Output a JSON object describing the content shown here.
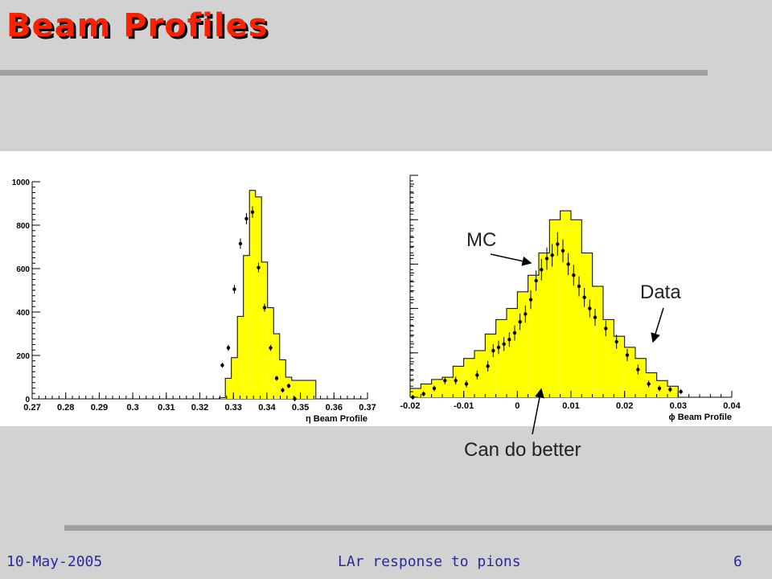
{
  "slide": {
    "title": "Beam Profiles",
    "footer_date": "10-May-2005",
    "footer_center": "LAr response to pions",
    "page_number": "6"
  },
  "annotations": {
    "mc": "MC",
    "data": "Data",
    "can_do_better": "Can do better"
  },
  "colors": {
    "title": "#ff2000",
    "background": "#d2d2d2",
    "histogram_fill": "#ffff00",
    "footer_text": "#2a2aa0"
  },
  "chart_data": [
    {
      "type": "bar",
      "xlabel": "η Beam Profile",
      "xlim": [
        0.27,
        0.37
      ],
      "ylim": [
        0,
        1000
      ],
      "x_ticks": [
        "0.27",
        "0.28",
        "0.29",
        "0.3",
        "0.31",
        "0.32",
        "0.33",
        "0.34",
        "0.35",
        "0.36",
        "0.37"
      ],
      "y_ticks": [
        "0",
        "200",
        "400",
        "600",
        "800",
        "1000"
      ],
      "series": [
        {
          "name": "MC",
          "style": "histogram",
          "bin_edges": [
            0.3258,
            0.3276,
            0.3294,
            0.3312,
            0.333,
            0.3348,
            0.3366,
            0.3384,
            0.3402,
            0.342,
            0.3438,
            0.3456,
            0.3474,
            0.3492,
            0.351,
            0.3546
          ],
          "values": [
            5,
            95,
            190,
            380,
            660,
            960,
            930,
            630,
            420,
            300,
            180,
            100,
            85,
            85,
            85
          ]
        },
        {
          "name": "Data",
          "style": "points",
          "x": [
            0.3267,
            0.3285,
            0.3303,
            0.3321,
            0.3339,
            0.3357,
            0.3375,
            0.3393,
            0.3411,
            0.3429,
            0.3447,
            0.3465,
            0.3483
          ],
          "y": [
            155,
            235,
            505,
            715,
            830,
            860,
            605,
            420,
            235,
            95,
            40,
            60,
            0
          ]
        }
      ]
    },
    {
      "type": "bar",
      "xlabel": "ϕ Beam Profile",
      "xlim": [
        -0.02,
        0.04
      ],
      "x_ticks": [
        "-0.02",
        "-0.01",
        "0",
        "0.01",
        "0.02",
        "0.03",
        "0.04"
      ],
      "series": [
        {
          "name": "MC",
          "style": "histogram",
          "bin_edges": [
            -0.02,
            -0.018,
            -0.016,
            -0.014,
            -0.012,
            -0.01,
            -0.008,
            -0.006,
            -0.004,
            -0.002,
            0.0,
            0.002,
            0.004,
            0.006,
            0.008,
            0.01,
            0.012,
            0.014,
            0.016,
            0.018,
            0.02,
            0.022,
            0.024,
            0.026,
            0.028,
            0.03
          ],
          "values": [
            8,
            12,
            16,
            18,
            28,
            35,
            42,
            57,
            70,
            80,
            95,
            110,
            130,
            160,
            168,
            160,
            130,
            100,
            70,
            55,
            45,
            35,
            22,
            15,
            10
          ]
        },
        {
          "name": "Data",
          "style": "points",
          "x": [
            -0.0195,
            -0.0175,
            -0.0155,
            -0.0135,
            -0.0115,
            -0.0095,
            -0.0075,
            -0.0055,
            -0.0045,
            -0.0035,
            -0.0025,
            -0.0015,
            -0.0005,
            0.0005,
            0.0015,
            0.0025,
            0.0035,
            0.0045,
            0.0055,
            0.0065,
            0.0075,
            0.0085,
            0.0095,
            0.0105,
            0.0115,
            0.0125,
            0.0135,
            0.0145,
            0.0165,
            0.0185,
            0.0205,
            0.0225,
            0.0245,
            0.0265,
            0.0285,
            0.0305
          ],
          "y": [
            0,
            3,
            8,
            15,
            15,
            12,
            20,
            28,
            42,
            45,
            48,
            52,
            58,
            68,
            75,
            88,
            105,
            115,
            125,
            128,
            138,
            132,
            120,
            110,
            100,
            90,
            80,
            72,
            62,
            50,
            38,
            25,
            12,
            8,
            7,
            5
          ]
        }
      ]
    }
  ]
}
